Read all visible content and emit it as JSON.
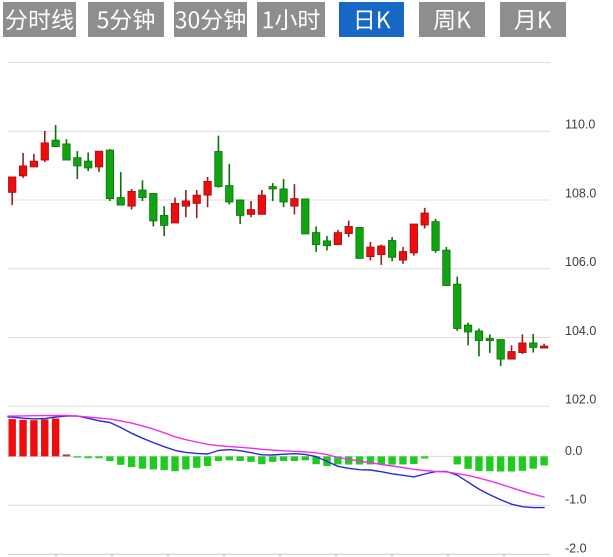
{
  "tabbar": {
    "tabs": [
      {
        "label": "分时线",
        "active": false
      },
      {
        "label": "5分钟",
        "active": false
      },
      {
        "label": "30分钟",
        "active": false
      },
      {
        "label": "1小时",
        "active": false
      },
      {
        "label": "日K",
        "active": true
      },
      {
        "label": "周K",
        "active": false
      },
      {
        "label": "月K",
        "active": false
      }
    ],
    "active_color": "#1668c4",
    "inactive_color": "#8e8e8e",
    "text_color": "#ffffff"
  },
  "chart_data": {
    "type": "candlestick",
    "title": "",
    "panels": [
      {
        "name": "price",
        "ylabel": "",
        "yticks": [
          112.0,
          110.0,
          108.0,
          106.0,
          104.0,
          102.0
        ],
        "ytick_labels": [
          "",
          "110.0",
          "108.0",
          "106.0",
          "104.0",
          "102.0"
        ],
        "grid": true,
        "legend_position": "none",
        "series": [
          {
            "name": "k-line",
            "type": "candlestick",
            "up_color": "#ee0c0c",
            "down_color": "#11a411",
            "ohlc": [
              {
                "open": 108.22,
                "high": 108.67,
                "low": 107.85,
                "close": 108.67,
                "dir": "up"
              },
              {
                "open": 108.7,
                "high": 109.37,
                "low": 108.64,
                "close": 108.99,
                "dir": "up"
              },
              {
                "open": 108.96,
                "high": 109.34,
                "low": 108.96,
                "close": 109.13,
                "dir": "up"
              },
              {
                "open": 109.16,
                "high": 110.01,
                "low": 109.1,
                "close": 109.66,
                "dir": "up"
              },
              {
                "open": 109.74,
                "high": 110.18,
                "low": 109.55,
                "close": 109.55,
                "dir": "down"
              },
              {
                "open": 109.63,
                "high": 109.77,
                "low": 109.16,
                "close": 109.16,
                "dir": "down"
              },
              {
                "open": 109.23,
                "high": 109.42,
                "low": 108.61,
                "close": 108.99,
                "dir": "down"
              },
              {
                "open": 109.13,
                "high": 109.38,
                "low": 108.84,
                "close": 108.93,
                "dir": "down"
              },
              {
                "open": 108.96,
                "high": 109.42,
                "low": 108.81,
                "close": 109.42,
                "dir": "up"
              },
              {
                "open": 109.45,
                "high": 109.48,
                "low": 107.97,
                "close": 108.04,
                "dir": "down"
              },
              {
                "open": 108.07,
                "high": 108.81,
                "low": 107.85,
                "close": 107.85,
                "dir": "down"
              },
              {
                "open": 107.82,
                "high": 108.32,
                "low": 107.72,
                "close": 108.25,
                "dir": "up"
              },
              {
                "open": 108.29,
                "high": 108.57,
                "low": 107.97,
                "close": 108.07,
                "dir": "down"
              },
              {
                "open": 108.19,
                "high": 108.19,
                "low": 107.23,
                "close": 107.39,
                "dir": "down"
              },
              {
                "open": 107.55,
                "high": 107.82,
                "low": 106.95,
                "close": 107.26,
                "dir": "down"
              },
              {
                "open": 107.33,
                "high": 108.07,
                "low": 107.33,
                "close": 107.9,
                "dir": "up"
              },
              {
                "open": 107.82,
                "high": 108.29,
                "low": 107.5,
                "close": 107.97,
                "dir": "up"
              },
              {
                "open": 107.9,
                "high": 108.29,
                "low": 107.47,
                "close": 108.14,
                "dir": "up"
              },
              {
                "open": 108.14,
                "high": 108.67,
                "low": 107.79,
                "close": 108.54,
                "dir": "up"
              },
              {
                "open": 109.41,
                "high": 109.87,
                "low": 108.36,
                "close": 108.39,
                "dir": "down"
              },
              {
                "open": 108.42,
                "high": 109.05,
                "low": 107.87,
                "close": 107.94,
                "dir": "down"
              },
              {
                "open": 108.0,
                "high": 108.0,
                "low": 107.3,
                "close": 107.55,
                "dir": "down"
              },
              {
                "open": 107.58,
                "high": 107.97,
                "low": 107.5,
                "close": 107.72,
                "dir": "up"
              },
              {
                "open": 107.58,
                "high": 108.29,
                "low": 107.58,
                "close": 108.14,
                "dir": "up"
              },
              {
                "open": 108.39,
                "high": 108.49,
                "low": 107.97,
                "close": 108.32,
                "dir": "down"
              },
              {
                "open": 108.32,
                "high": 108.61,
                "low": 107.79,
                "close": 107.94,
                "dir": "down"
              },
              {
                "open": 107.82,
                "high": 108.46,
                "low": 107.58,
                "close": 108.04,
                "dir": "up"
              },
              {
                "open": 108.03,
                "high": 108.03,
                "low": 107.01,
                "close": 107.01,
                "dir": "down"
              },
              {
                "open": 107.05,
                "high": 107.23,
                "low": 106.49,
                "close": 106.7,
                "dir": "down"
              },
              {
                "open": 106.81,
                "high": 106.95,
                "low": 106.53,
                "close": 106.67,
                "dir": "down"
              },
              {
                "open": 106.7,
                "high": 107.13,
                "low": 106.7,
                "close": 107.05,
                "dir": "up"
              },
              {
                "open": 107.02,
                "high": 107.4,
                "low": 106.92,
                "close": 107.23,
                "dir": "up"
              },
              {
                "open": 107.2,
                "high": 107.2,
                "low": 106.3,
                "close": 106.3,
                "dir": "down"
              },
              {
                "open": 106.35,
                "high": 106.78,
                "low": 106.24,
                "close": 106.63,
                "dir": "up"
              },
              {
                "open": 106.41,
                "high": 106.7,
                "low": 106.11,
                "close": 106.66,
                "dir": "up"
              },
              {
                "open": 106.82,
                "high": 106.92,
                "low": 106.21,
                "close": 106.33,
                "dir": "down"
              },
              {
                "open": 106.25,
                "high": 106.63,
                "low": 106.14,
                "close": 106.5,
                "dir": "up"
              },
              {
                "open": 106.46,
                "high": 107.3,
                "low": 106.38,
                "close": 107.3,
                "dir": "up"
              },
              {
                "open": 107.27,
                "high": 107.77,
                "low": 107.17,
                "close": 107.62,
                "dir": "up"
              },
              {
                "open": 107.37,
                "high": 107.45,
                "low": 106.46,
                "close": 106.53,
                "dir": "down"
              },
              {
                "open": 106.54,
                "high": 106.63,
                "low": 105.5,
                "close": 105.51,
                "dir": "down"
              },
              {
                "open": 105.55,
                "high": 105.77,
                "low": 104.19,
                "close": 104.26,
                "dir": "down"
              },
              {
                "open": 104.36,
                "high": 104.43,
                "low": 103.77,
                "close": 104.16,
                "dir": "down"
              },
              {
                "open": 104.19,
                "high": 104.26,
                "low": 103.45,
                "close": 103.91,
                "dir": "down"
              },
              {
                "open": 103.97,
                "high": 104.09,
                "low": 103.55,
                "close": 103.91,
                "dir": "down"
              },
              {
                "open": 103.94,
                "high": 103.94,
                "low": 103.17,
                "close": 103.37,
                "dir": "down"
              },
              {
                "open": 103.37,
                "high": 103.77,
                "low": 103.37,
                "close": 103.59,
                "dir": "up"
              },
              {
                "open": 103.56,
                "high": 104.09,
                "low": 103.52,
                "close": 103.84,
                "dir": "up"
              },
              {
                "open": 103.84,
                "high": 104.1,
                "low": 103.56,
                "close": 103.71,
                "dir": "down"
              },
              {
                "open": 103.71,
                "high": 103.82,
                "low": 103.68,
                "close": 103.75,
                "dir": "up"
              }
            ]
          }
        ]
      },
      {
        "name": "macd",
        "ylabel": "",
        "yticks": [
          0.0,
          -1.0,
          -2.0
        ],
        "ytick_labels": [
          "0.0",
          "-1.0",
          "-2.0"
        ],
        "grid": true,
        "series": [
          {
            "name": "MACD",
            "type": "bar",
            "positive_color": "#ee0c0c",
            "negative_color": "#1ecb1e",
            "values": [
              0.763,
              0.748,
              0.74,
              0.757,
              0.775,
              0.041,
              -0.025,
              -0.037,
              -0.037,
              -0.094,
              -0.172,
              -0.219,
              -0.252,
              -0.266,
              -0.28,
              -0.303,
              -0.266,
              -0.233,
              -0.196,
              -0.094,
              -0.08,
              -0.094,
              -0.112,
              -0.16,
              -0.112,
              -0.094,
              -0.094,
              -0.08,
              -0.16,
              -0.196,
              -0.164,
              -0.166,
              -0.166,
              -0.164,
              -0.166,
              -0.168,
              -0.164,
              -0.155,
              -0.043,
              -0.008,
              -0.008,
              -0.164,
              -0.254,
              -0.297,
              -0.303,
              -0.309,
              -0.309,
              -0.294,
              -0.252,
              -0.186
            ]
          },
          {
            "name": "DIF",
            "type": "line",
            "color": "#2a2ad2",
            "values": [
              0.805,
              0.781,
              0.767,
              0.773,
              0.805,
              0.827,
              0.826,
              0.779,
              0.728,
              0.694,
              0.59,
              0.473,
              0.373,
              0.283,
              0.198,
              0.123,
              0.082,
              0.062,
              0.049,
              0.12,
              0.139,
              0.116,
              0.075,
              0.033,
              0.028,
              0.046,
              0.055,
              0.04,
              -0.004,
              -0.102,
              -0.202,
              -0.244,
              -0.271,
              -0.278,
              -0.312,
              -0.356,
              -0.387,
              -0.42,
              -0.359,
              -0.31,
              -0.306,
              -0.384,
              -0.528,
              -0.669,
              -0.785,
              -0.887,
              -0.977,
              -1.029,
              -1.047,
              -1.047
            ]
          },
          {
            "name": "DEA",
            "type": "line",
            "color": "#ed2fed",
            "values": [
              0.824,
              0.829,
              0.832,
              0.834,
              0.836,
              0.837,
              0.824,
              0.803,
              0.783,
              0.762,
              0.726,
              0.68,
              0.623,
              0.558,
              0.482,
              0.401,
              0.341,
              0.294,
              0.248,
              0.218,
              0.201,
              0.187,
              0.168,
              0.145,
              0.128,
              0.114,
              0.104,
              0.093,
              0.073,
              0.036,
              -0.023,
              -0.059,
              -0.095,
              -0.131,
              -0.163,
              -0.196,
              -0.23,
              -0.264,
              -0.289,
              -0.307,
              -0.317,
              -0.351,
              -0.393,
              -0.443,
              -0.502,
              -0.569,
              -0.64,
              -0.712,
              -0.776,
              -0.83
            ]
          }
        ]
      }
    ],
    "x_categories": []
  },
  "colors": {
    "background": "#ffffff",
    "grid": "#dcdcdc",
    "axis": "#c8c8c8",
    "tick": "#b9bfc6",
    "label_text": "#3c3c3c",
    "candle_up": "#ee0c0c",
    "candle_up_border": "#a00e0e",
    "candle_up_wick": "#962020",
    "candle_down": "#11a411",
    "candle_down_border": "#0b720b",
    "candle_down_wick": "#0a6e0a",
    "macd_up": "#ee0c0c",
    "macd_up_small": "#aa4444",
    "macd_down": "#1ecb1e",
    "dif_line": "#2a2ad2",
    "dea_line": "#ed2fed"
  }
}
